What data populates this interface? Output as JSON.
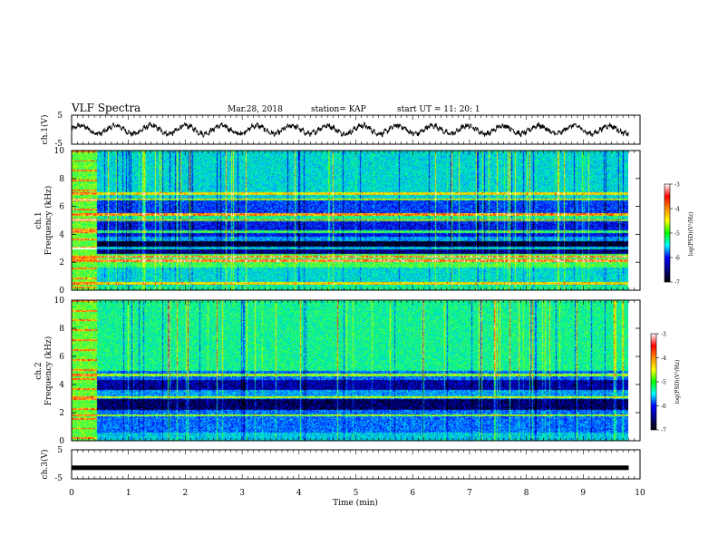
{
  "header": {
    "title": "VLF Spectra",
    "date": "Mar.28, 2018",
    "station": "station= KAP",
    "start_ut": "start  UT =   11: 20: 1"
  },
  "colorbar": {
    "label": "log(PSD)(V²/Hz)",
    "ticks": [
      "-3",
      "-4",
      "-5",
      "-6",
      "-7"
    ],
    "colors": [
      "#ffffff",
      "#ff0000",
      "#ff8c00",
      "#ffff00",
      "#00ff00",
      "#00ffff",
      "#0000ff",
      "#000080",
      "#000000"
    ]
  },
  "chart_data": [
    {
      "type": "line",
      "name": "ch1-waveform",
      "ylabel": "ch.1(V)",
      "ylim": [
        -5,
        5
      ],
      "ytick_labels": [
        "5",
        "-5"
      ],
      "xlim": [
        0,
        10
      ],
      "description_values": {
        "amplitude_v": 1.4,
        "dominant_period_min": 0.62
      }
    },
    {
      "type": "heatmap",
      "name": "ch1-spectrogram",
      "ylabel": "ch.1\nFrequency  (kHz)",
      "ylim": [
        0,
        10
      ],
      "ytick_labels": [
        "0",
        "2",
        "4",
        "6",
        "8",
        "10"
      ],
      "xlim": [
        0,
        10
      ],
      "zlim": [
        -7,
        -3
      ],
      "bands_khz": [
        {
          "from": 0.0,
          "to": 0.3,
          "level": -5.0
        },
        {
          "from": 0.3,
          "to": 1.6,
          "level": -5.3
        },
        {
          "from": 1.6,
          "to": 2.6,
          "level": -4.7
        },
        {
          "from": 2.6,
          "to": 3.0,
          "level": -6.6
        },
        {
          "from": 3.0,
          "to": 3.5,
          "level": -6.9
        },
        {
          "from": 3.5,
          "to": 3.8,
          "level": -5.6
        },
        {
          "from": 3.8,
          "to": 5.0,
          "level": -6.2
        },
        {
          "from": 5.0,
          "to": 5.5,
          "level": -5.0
        },
        {
          "from": 5.5,
          "to": 6.5,
          "level": -6.0
        },
        {
          "from": 6.5,
          "to": 10.0,
          "level": -5.3
        }
      ],
      "lines_khz": [
        0.5,
        2.1,
        2.4,
        3.0,
        4.2,
        5.0,
        5.4,
        6.5,
        6.9
      ]
    },
    {
      "type": "heatmap",
      "name": "ch2-spectrogram",
      "ylabel": "ch.2\nFrequency  (kHz)",
      "ylim": [
        0,
        10
      ],
      "ytick_labels": [
        "0",
        "2",
        "4",
        "6",
        "8",
        "10"
      ],
      "xlim": [
        0,
        10
      ],
      "zlim": [
        -7,
        -3
      ],
      "bands_khz": [
        {
          "from": 0.0,
          "to": 0.6,
          "level": -5.4
        },
        {
          "from": 0.6,
          "to": 2.2,
          "level": -5.8
        },
        {
          "from": 2.2,
          "to": 3.0,
          "level": -6.7
        },
        {
          "from": 3.0,
          "to": 3.6,
          "level": -5.6
        },
        {
          "from": 3.6,
          "to": 4.3,
          "level": -6.5
        },
        {
          "from": 4.3,
          "to": 5.0,
          "level": -5.8
        },
        {
          "from": 5.0,
          "to": 10.0,
          "level": -5.0
        }
      ],
      "lines_khz": [
        1.8,
        3.1,
        4.7
      ]
    },
    {
      "type": "line",
      "name": "ch3-signal",
      "ylabel": "ch.3(V)",
      "ylim": [
        -5,
        5
      ],
      "ytick_labels": [
        "5",
        "-5"
      ],
      "xlim": [
        0,
        10
      ],
      "xlabel": "Time  (min)",
      "xtick_labels": [
        "0",
        "1",
        "2",
        "3",
        "4",
        "5",
        "6",
        "7",
        "8",
        "9",
        "10"
      ],
      "constant_value": -1.2,
      "data_end_min": 9.8
    }
  ]
}
